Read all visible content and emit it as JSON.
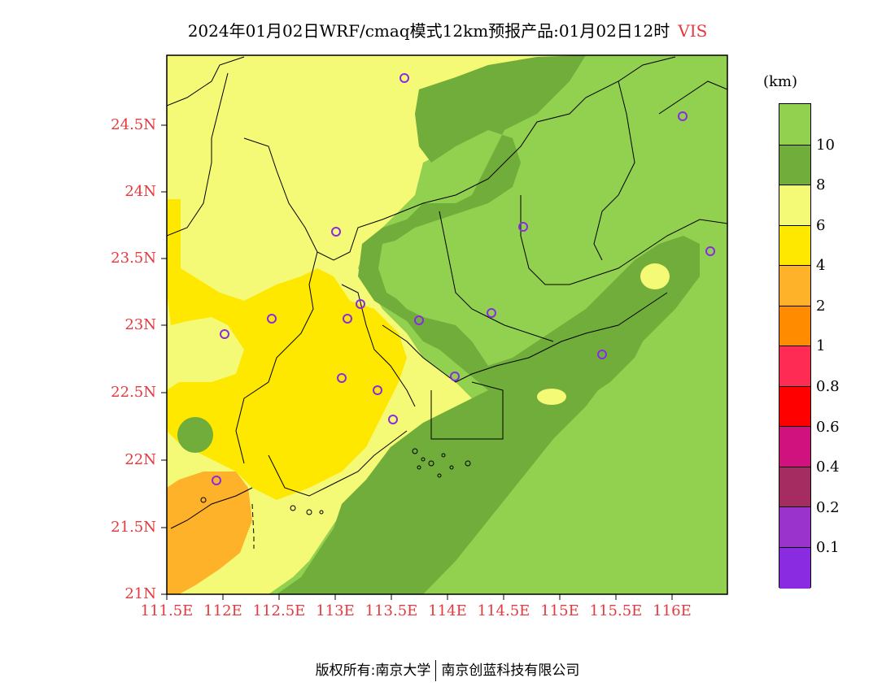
{
  "title": {
    "main": "2024年01月02日WRF/cmaq模式12km预报产品:01月02日12时",
    "variable": "VIS"
  },
  "axes": {
    "lat_labels": [
      "24.5N",
      "24N",
      "23.5N",
      "23N",
      "22.5N",
      "22N",
      "21.5N",
      "21N"
    ],
    "lon_labels": [
      "111.5E",
      "112E",
      "112.5E",
      "113E",
      "113.5E",
      "114E",
      "114.5E",
      "115E",
      "115.5E",
      "116E"
    ]
  },
  "legend": {
    "unit": "(km)",
    "labels": [
      "10",
      "8",
      "6",
      "4",
      "2",
      "1",
      "0.8",
      "0.6",
      "0.4",
      "0.2",
      "0.1"
    ],
    "colors": [
      "#92d050",
      "#70ad3a",
      "#f4f976",
      "#ffe800",
      "#fdb22a",
      "#ff8c00",
      "#fe2c55",
      "#fe0000",
      "#cf127e",
      "#a52c60",
      "#9933cc",
      "#8a2be2"
    ]
  },
  "footer": {
    "left": "版权所有:南京大学",
    "right": "南京创蓝科技有限公司"
  }
}
